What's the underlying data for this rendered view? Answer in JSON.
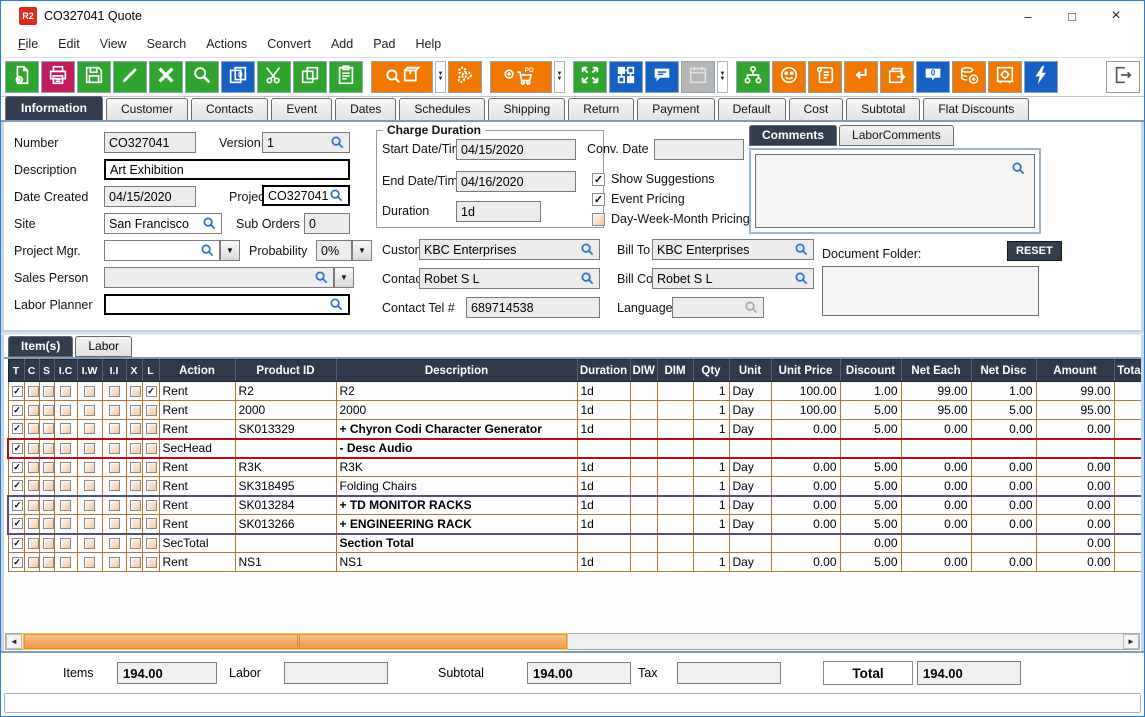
{
  "window": {
    "title": "CO327041 Quote",
    "app_icon": "R2",
    "controls": {
      "minimize": "–",
      "maximize": "□",
      "close": "×"
    }
  },
  "menu": {
    "items": [
      "File",
      "Edit",
      "View",
      "Search",
      "Actions",
      "Convert",
      "Add",
      "Pad",
      "Help"
    ]
  },
  "toolbar": {
    "icons": [
      "new-document",
      "print",
      "save",
      "edit",
      "delete",
      "search",
      "copy-special",
      "cut",
      "copy",
      "paste",
      "product-search",
      "product-search-dropdown",
      "settings-gears",
      "add-purchase-order",
      "add-purchase-order-dropdown",
      "expand",
      "modules",
      "comment",
      "calendar-disabled",
      "calendar-dropdown",
      "org-chart",
      "smiley",
      "notes-scroll",
      "return",
      "transfer-box",
      "message-zero",
      "add-money",
      "vault",
      "quick-actions",
      "exit"
    ]
  },
  "tabs": {
    "active": "Information",
    "items": [
      "Information",
      "Customer",
      "Contacts",
      "Event",
      "Dates",
      "Schedules",
      "Shipping",
      "Return",
      "Payment",
      "Default",
      "Cost",
      "Subtotal",
      "Flat Discounts"
    ]
  },
  "info": {
    "number": {
      "label": "Number",
      "value": "CO327041"
    },
    "version": {
      "label": "Version",
      "value": "1"
    },
    "description": {
      "label": "Description",
      "value": "Art Exhibition"
    },
    "date_created": {
      "label": "Date Created",
      "value": "04/15/2020"
    },
    "project": {
      "label": "Project",
      "value": "CO327041"
    },
    "site": {
      "label": "Site",
      "value": "San Francisco"
    },
    "sub_orders": {
      "label": "Sub Orders",
      "value": "0"
    },
    "project_mgr": {
      "label": "Project Mgr.",
      "value": ""
    },
    "probability": {
      "label": "Probability",
      "value": "0%"
    },
    "sales_person": {
      "label": "Sales Person",
      "value": ""
    },
    "labor_planner": {
      "label": "Labor Planner",
      "value": ""
    },
    "charge_duration": {
      "title": "Charge Duration",
      "start": {
        "label": "Start Date/Time",
        "value": "04/15/2020"
      },
      "end": {
        "label": "End Date/Time",
        "value": "04/16/2020"
      },
      "duration": {
        "label": "Duration",
        "value": "1d"
      }
    },
    "conv_date": {
      "label": "Conv. Date",
      "value": ""
    },
    "show_suggestions": {
      "label": "Show Suggestions",
      "checked": true
    },
    "event_pricing": {
      "label": "Event Pricing",
      "checked": true
    },
    "dwm_pricing": {
      "label": "Day-Week-Month Pricing",
      "checked": false
    },
    "customer": {
      "label": "Customer",
      "value": "KBC Enterprises"
    },
    "bill_to": {
      "label": "Bill To",
      "value": "KBC Enterprises"
    },
    "contact": {
      "label": "Contact",
      "value": "Robet S L"
    },
    "bill_contact": {
      "label": "Bill Contact",
      "value": "Robet S L"
    },
    "contact_tel": {
      "label": "Contact Tel #",
      "value": "689714538"
    },
    "language": {
      "label": "Language",
      "value": ""
    },
    "comments_tabs": {
      "active": "Comments",
      "items": [
        "Comments",
        "LaborComments"
      ]
    },
    "document_folder": {
      "label": "Document Folder:",
      "reset_label": "RESET",
      "value": ""
    }
  },
  "items_panel": {
    "active": "Item(s)",
    "tabs": [
      "Item(s)",
      "Labor"
    ]
  },
  "table": {
    "checkbox_headers": [
      "T",
      "C",
      "S",
      "I.C",
      "I.W",
      "I.I",
      "X",
      "L"
    ],
    "headers": [
      "Action",
      "Product ID",
      "Description",
      "Duration",
      "DIW",
      "DIM",
      "Qty",
      "Unit",
      "Unit Price",
      "Discount",
      "Net Each",
      "Net Disc",
      "Amount",
      "Total"
    ],
    "rows": [
      {
        "checks": [
          1,
          0,
          0,
          0,
          0,
          0,
          0,
          1
        ],
        "bold": false,
        "row_style": "",
        "action": "Rent",
        "product_id": "R2",
        "description": "R2",
        "duration": "1d",
        "diw": "",
        "dim": "",
        "qty": "1",
        "unit": "Day",
        "unit_price": "100.00",
        "discount": "1.00",
        "net_each": "99.00",
        "net_disc": "1.00",
        "amount": "99.00",
        "total": ""
      },
      {
        "checks": [
          1,
          0,
          0,
          0,
          0,
          0,
          0,
          0
        ],
        "bold": false,
        "row_style": "",
        "action": "Rent",
        "product_id": "2000",
        "description": "2000",
        "duration": "1d",
        "diw": "",
        "dim": "",
        "qty": "1",
        "unit": "Day",
        "unit_price": "100.00",
        "discount": "5.00",
        "net_each": "95.00",
        "net_disc": "5.00",
        "amount": "95.00",
        "total": ""
      },
      {
        "checks": [
          1,
          0,
          0,
          0,
          0,
          0,
          0,
          0
        ],
        "bold": true,
        "row_style": "",
        "action": "Rent",
        "product_id": "SK013329",
        "description": "+  Chyron Codi Character Generator",
        "duration": "1d",
        "diw": "",
        "dim": "",
        "qty": "1",
        "unit": "Day",
        "unit_price": "0.00",
        "discount": "5.00",
        "net_each": "0.00",
        "net_disc": "0.00",
        "amount": "0.00",
        "total": ""
      },
      {
        "checks": [
          1,
          0,
          0,
          0,
          0,
          0,
          0,
          0
        ],
        "bold": true,
        "row_style": "sechead",
        "action": "SecHead",
        "product_id": "",
        "description": "-  Desc Audio",
        "duration": "",
        "diw": "",
        "dim": "",
        "qty": "",
        "unit": "",
        "unit_price": "",
        "discount": "",
        "net_each": "",
        "net_disc": "",
        "amount": "",
        "total": ""
      },
      {
        "checks": [
          1,
          0,
          0,
          0,
          0,
          0,
          0,
          0
        ],
        "bold": false,
        "row_style": "",
        "action": "Rent",
        "product_id": "R3K",
        "description": "R3K",
        "duration": "1d",
        "diw": "",
        "dim": "",
        "qty": "1",
        "unit": "Day",
        "unit_price": "0.00",
        "discount": "5.00",
        "net_each": "0.00",
        "net_disc": "0.00",
        "amount": "0.00",
        "total": ""
      },
      {
        "checks": [
          1,
          0,
          0,
          0,
          0,
          0,
          0,
          0
        ],
        "bold": false,
        "row_style": "",
        "action": "Rent",
        "product_id": "SK318495",
        "description": "Folding Chairs",
        "duration": "1d",
        "diw": "",
        "dim": "",
        "qty": "1",
        "unit": "Day",
        "unit_price": "0.00",
        "discount": "5.00",
        "net_each": "0.00",
        "net_disc": "0.00",
        "amount": "0.00",
        "total": ""
      },
      {
        "checks": [
          1,
          0,
          0,
          0,
          0,
          0,
          0,
          0
        ],
        "bold": true,
        "row_style": "grp grp-top",
        "action": "Rent",
        "product_id": "SK013284",
        "description": "+  TD MONITOR RACKS",
        "duration": "1d",
        "diw": "",
        "dim": "",
        "qty": "1",
        "unit": "Day",
        "unit_price": "0.00",
        "discount": "5.00",
        "net_each": "0.00",
        "net_disc": "0.00",
        "amount": "0.00",
        "total": ""
      },
      {
        "checks": [
          1,
          0,
          0,
          0,
          0,
          0,
          0,
          0
        ],
        "bold": true,
        "row_style": "grp grp-bot",
        "action": "Rent",
        "product_id": "SK013266",
        "description": "+  ENGINEERING RACK",
        "duration": "1d",
        "diw": "",
        "dim": "",
        "qty": "1",
        "unit": "Day",
        "unit_price": "0.00",
        "discount": "5.00",
        "net_each": "0.00",
        "net_disc": "0.00",
        "amount": "0.00",
        "total": ""
      },
      {
        "checks": [
          1,
          0,
          0,
          0,
          0,
          0,
          0,
          0
        ],
        "bold": true,
        "row_style": "",
        "action": "SecTotal",
        "product_id": "",
        "description": "Section Total",
        "duration": "",
        "diw": "",
        "dim": "",
        "qty": "",
        "unit": "",
        "unit_price": "",
        "discount": "0.00",
        "net_each": "",
        "net_disc": "",
        "amount": "0.00",
        "total": ""
      },
      {
        "checks": [
          1,
          0,
          0,
          0,
          0,
          0,
          0,
          0
        ],
        "bold": false,
        "row_style": "",
        "action": "Rent",
        "product_id": "NS1",
        "description": "NS1",
        "duration": "1d",
        "diw": "",
        "dim": "",
        "qty": "1",
        "unit": "Day",
        "unit_price": "0.00",
        "discount": "5.00",
        "net_each": "0.00",
        "net_disc": "0.00",
        "amount": "0.00",
        "total": ""
      }
    ]
  },
  "summary": {
    "items": {
      "label": "Items",
      "value": "194.00"
    },
    "labor": {
      "label": "Labor",
      "value": ""
    },
    "subtotal": {
      "label": "Subtotal",
      "value": "194.00"
    },
    "tax": {
      "label": "Tax",
      "value": ""
    },
    "total": {
      "label": "Total",
      "value": "194.00"
    }
  },
  "colors": {
    "green": "#2fa42f",
    "pink": "#c01e5a",
    "blue": "#1660c4",
    "orange": "#f07800",
    "header_dark": "#2e3a4b",
    "grid_line": "#b0762f",
    "sec_red": "#b01010",
    "sec_purple": "#5a4e78",
    "scroll_thumb": "#ef9a4e"
  }
}
